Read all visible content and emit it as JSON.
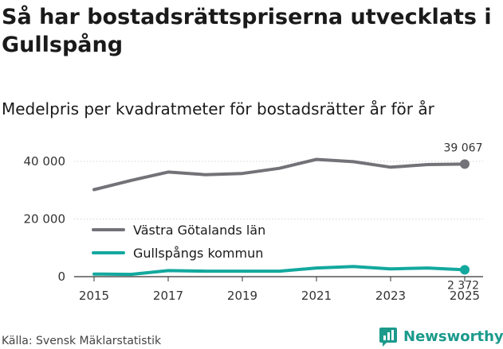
{
  "title": "Så har bostadsrättspriserna utvecklats i Gullspång",
  "subtitle": "Medelpris per kvadratmeter för bostadsrätter år för år",
  "source": "Källa: Svensk Mäklarstatistik",
  "brand": "Newsworthy",
  "colors": {
    "series1": "#737278",
    "series2": "#13a89e",
    "brand": "#1b9a8c"
  },
  "chart_data": {
    "type": "line",
    "title": "Så har bostadsrättspriserna utvecklats i Gullspång",
    "subtitle": "Medelpris per kvadratmeter för bostadsrätter år för år",
    "x": [
      2015,
      2016,
      2017,
      2018,
      2019,
      2020,
      2021,
      2022,
      2023,
      2024,
      2025
    ],
    "x_ticks": [
      "2015",
      "2017",
      "2019",
      "2021",
      "2023",
      "2025"
    ],
    "y_ticks": [
      {
        "value": 0,
        "label": "0"
      },
      {
        "value": 20000,
        "label": "20 000"
      },
      {
        "value": 40000,
        "label": "40 000"
      }
    ],
    "ylim": [
      0,
      45000
    ],
    "grid": true,
    "legend_position": "left",
    "series": [
      {
        "name": "Västra Götalands län",
        "values": [
          30200,
          33400,
          36300,
          35400,
          35800,
          37600,
          40700,
          39900,
          38000,
          38900,
          39067
        ],
        "end_label": "39 067"
      },
      {
        "name": "Gullspångs kommun",
        "values": [
          900,
          800,
          2100,
          1900,
          1900,
          1900,
          3000,
          3500,
          2700,
          3000,
          2372
        ],
        "end_label": "2 372"
      }
    ]
  }
}
